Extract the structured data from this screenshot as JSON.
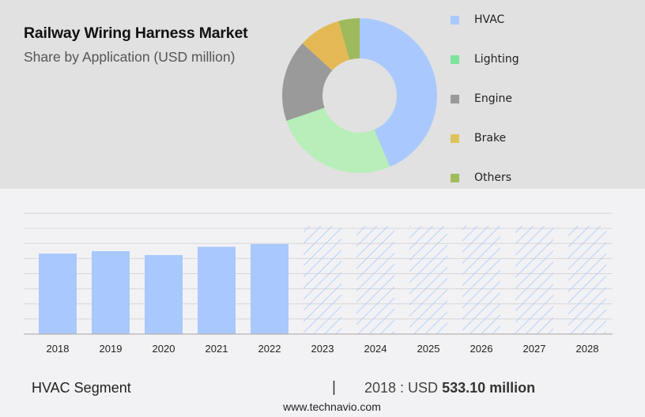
{
  "header": {
    "title": "Railway Wiring Harness Market",
    "subtitle": "Share by Application (USD million)"
  },
  "legend": {
    "items": [
      {
        "label": "HVAC",
        "color": "#a9c8fc"
      },
      {
        "label": "Lighting",
        "color": "#7ee39c"
      },
      {
        "label": "Engine",
        "color": "#999999"
      },
      {
        "label": "Brake",
        "color": "#dcc45a"
      },
      {
        "label": "Others",
        "color": "#a0bb5e"
      }
    ]
  },
  "footer": {
    "segment_label": "HVAC Segment",
    "divider": "|",
    "value_prefix": "2018 : USD ",
    "value_bold": "533.10 million",
    "source_url": "www.technavio.com"
  },
  "chart_data": [
    {
      "type": "pie",
      "title": "Railway Wiring Harness Market",
      "subtitle": "Share by Application (USD million)",
      "donut": true,
      "categories": [
        "HVAC",
        "Lighting",
        "Engine",
        "Brake",
        "Others"
      ],
      "values": [
        43.6,
        26.1,
        17.1,
        8.8,
        4.4
      ],
      "unit": "% share (estimated from slice angles)",
      "colors": [
        "#a9c9fe",
        "#b8eeb9",
        "#9a9a9a",
        "#e4b955",
        "#9eba5c"
      ],
      "legend_position": "right"
    },
    {
      "type": "bar",
      "title": "HVAC Segment",
      "categories": [
        "2018",
        "2019",
        "2020",
        "2021",
        "2022",
        "2023",
        "2024",
        "2025",
        "2026",
        "2027",
        "2028"
      ],
      "values": [
        533.1,
        549,
        523,
        578,
        596,
        null,
        null,
        null,
        null,
        null,
        null
      ],
      "forecast_placeholder_height": 716,
      "forecast_years": [
        "2023",
        "2024",
        "2025",
        "2026",
        "2027",
        "2028"
      ],
      "xlabel": "",
      "ylabel": "USD million",
      "ylim": [
        0,
        800
      ],
      "grid_step": 100,
      "grid": true,
      "y_tick_labels_shown": false,
      "bar_color": "#a9c8fc",
      "forecast_style": "hatched",
      "annotation": "2018 : USD 533.10 million"
    }
  ]
}
